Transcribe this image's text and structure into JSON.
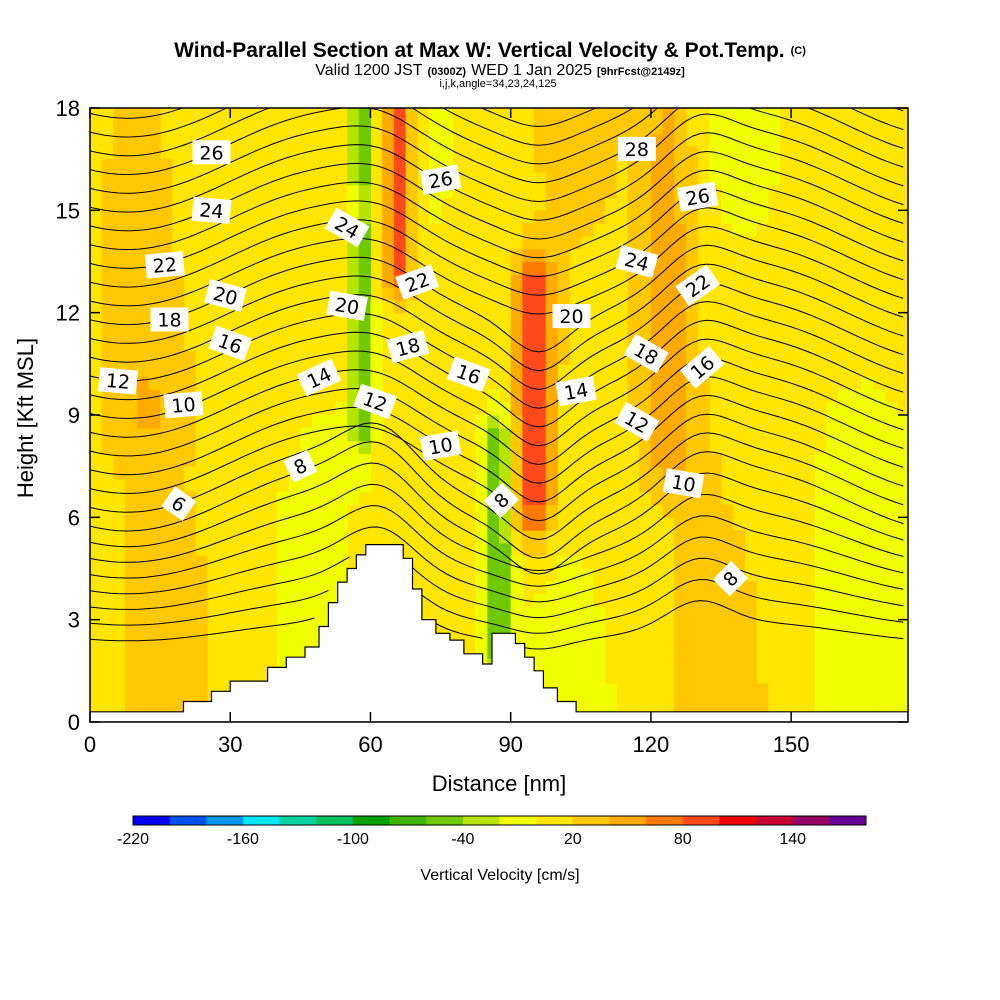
{
  "chart_data": {
    "type": "heatmap",
    "title": "Wind-Parallel Section at Max W: Vertical Velocity & Pot.Temp.",
    "title_mark": "(C)",
    "subtitle": {
      "prefix": "Valid 1200 JST",
      "utc": "(0300Z)",
      "date": "WED 1 Jan 2025",
      "forecast": "[9hrFcst@2149z]"
    },
    "subtitle2": "i,j,k,angle=34,23,24,125",
    "xlabel": "Distance [nm]",
    "ylabel": "Height [Kft MSL]",
    "xlim": [
      0,
      175
    ],
    "ylim": [
      0,
      18
    ],
    "xticks": [
      0,
      30,
      60,
      90,
      120,
      150
    ],
    "yticks": [
      0,
      3,
      6,
      9,
      12,
      15,
      18
    ],
    "colorbar": {
      "title": "Vertical Velocity [cm/s]",
      "levels": [
        -220,
        -200,
        -180,
        -160,
        -140,
        -120,
        -100,
        -80,
        -60,
        -40,
        -20,
        0,
        20,
        40,
        60,
        80,
        100,
        120,
        140,
        160
      ],
      "tick_labels": [
        "-220",
        "-160",
        "-100",
        "-40",
        "20",
        "80",
        "140"
      ],
      "tick_values": [
        -220,
        -160,
        -100,
        -40,
        20,
        80,
        140
      ],
      "colors": [
        "#0000f0",
        "#0050f0",
        "#0096f0",
        "#00e6ff",
        "#00d2a0",
        "#00c060",
        "#00a000",
        "#40b400",
        "#70c800",
        "#b4e400",
        "#f0ff00",
        "#ffe600",
        "#ffc800",
        "#ffaa00",
        "#ff7a00",
        "#ff4a1e",
        "#f00000",
        "#c80032",
        "#960064",
        "#640096"
      ]
    },
    "vertical_velocity_features": [
      {
        "name": "updraft",
        "x_center": 66,
        "x_width": 3,
        "y_from": 13.5,
        "y_to": 18,
        "w": 90
      },
      {
        "name": "updraft",
        "x_center": 95,
        "x_width": 4,
        "y_from": 6.5,
        "y_to": 12.5,
        "w": 90
      },
      {
        "name": "updraft",
        "x_center": 124,
        "x_width": 6,
        "y_from": 8,
        "y_to": 18,
        "w": 40
      },
      {
        "name": "updraft",
        "x_center": 12,
        "x_width": 9,
        "y_from": 9,
        "y_to": 18,
        "w": 25
      },
      {
        "name": "downdraft",
        "x_center": 87,
        "x_width": 3,
        "y_from": 2.5,
        "y_to": 8,
        "w": -70
      },
      {
        "name": "downdraft",
        "x_center": 58,
        "x_width": 2,
        "y_from": 9,
        "y_to": 14,
        "w": -60
      },
      {
        "name": "downdraft",
        "x_center": 58,
        "x_width": 2,
        "y_from": 16.5,
        "y_to": 18,
        "w": -70
      }
    ],
    "terrain": [
      {
        "x": 0,
        "h": 0.3
      },
      {
        "x": 19,
        "h": 0.3
      },
      {
        "x": 20,
        "h": 0.6
      },
      {
        "x": 26,
        "h": 0.9
      },
      {
        "x": 30,
        "h": 1.2
      },
      {
        "x": 38,
        "h": 1.6
      },
      {
        "x": 42,
        "h": 1.9
      },
      {
        "x": 46,
        "h": 2.2
      },
      {
        "x": 49,
        "h": 2.8
      },
      {
        "x": 51,
        "h": 3.5
      },
      {
        "x": 53,
        "h": 4.1
      },
      {
        "x": 55,
        "h": 4.5
      },
      {
        "x": 57,
        "h": 4.9
      },
      {
        "x": 59,
        "h": 5.2
      },
      {
        "x": 65,
        "h": 5.2
      },
      {
        "x": 67,
        "h": 4.8
      },
      {
        "x": 69,
        "h": 3.9
      },
      {
        "x": 71,
        "h": 3.0
      },
      {
        "x": 74,
        "h": 2.6
      },
      {
        "x": 77,
        "h": 2.4
      },
      {
        "x": 80,
        "h": 2.0
      },
      {
        "x": 84,
        "h": 1.7
      },
      {
        "x": 86,
        "h": 2.6
      },
      {
        "x": 91,
        "h": 2.3
      },
      {
        "x": 93,
        "h": 1.9
      },
      {
        "x": 95,
        "h": 1.5
      },
      {
        "x": 97,
        "h": 1.0
      },
      {
        "x": 100,
        "h": 0.6
      },
      {
        "x": 104,
        "h": 0.3
      },
      {
        "x": 175,
        "h": 0.3
      }
    ],
    "theta_contour_labels": [
      {
        "text": "6",
        "x": 19,
        "y": 6.4,
        "angle": 35
      },
      {
        "text": "8",
        "x": 45,
        "y": 7.5,
        "angle": -25
      },
      {
        "text": "8",
        "x": 88,
        "y": 6.5,
        "angle": -45
      },
      {
        "text": "8",
        "x": 137,
        "y": 4.2,
        "angle": -45
      },
      {
        "text": "10",
        "x": 20,
        "y": 9.3,
        "angle": -5
      },
      {
        "text": "10",
        "x": 75,
        "y": 8.1,
        "angle": -10
      },
      {
        "text": "10",
        "x": 127,
        "y": 7.0,
        "angle": 10
      },
      {
        "text": "12",
        "x": 6,
        "y": 10.0,
        "angle": 5
      },
      {
        "text": "12",
        "x": 61,
        "y": 9.4,
        "angle": 20
      },
      {
        "text": "12",
        "x": 117,
        "y": 8.8,
        "angle": 30
      },
      {
        "text": "14",
        "x": 49,
        "y": 10.1,
        "angle": -25
      },
      {
        "text": "14",
        "x": 104,
        "y": 9.7,
        "angle": -10
      },
      {
        "text": "16",
        "x": 30,
        "y": 11.1,
        "angle": 20
      },
      {
        "text": "16",
        "x": 81,
        "y": 10.2,
        "angle": 20
      },
      {
        "text": "16",
        "x": 131,
        "y": 10.4,
        "angle": -40
      },
      {
        "text": "18",
        "x": 17,
        "y": 11.8,
        "angle": 0
      },
      {
        "text": "18",
        "x": 68,
        "y": 11.0,
        "angle": -15
      },
      {
        "text": "18",
        "x": 119,
        "y": 10.8,
        "angle": 30
      },
      {
        "text": "20",
        "x": 29,
        "y": 12.5,
        "angle": 15
      },
      {
        "text": "20",
        "x": 55,
        "y": 12.2,
        "angle": 10
      },
      {
        "text": "20",
        "x": 103,
        "y": 11.9,
        "angle": 0
      },
      {
        "text": "22",
        "x": 16,
        "y": 13.4,
        "angle": -5
      },
      {
        "text": "22",
        "x": 70,
        "y": 12.9,
        "angle": -20
      },
      {
        "text": "22",
        "x": 130,
        "y": 12.8,
        "angle": -35
      },
      {
        "text": "24",
        "x": 26,
        "y": 15.0,
        "angle": 5
      },
      {
        "text": "24",
        "x": 55,
        "y": 14.5,
        "angle": 30
      },
      {
        "text": "24",
        "x": 117,
        "y": 13.5,
        "angle": 15
      },
      {
        "text": "26",
        "x": 26,
        "y": 16.7,
        "angle": 0
      },
      {
        "text": "26",
        "x": 75,
        "y": 15.9,
        "angle": -10
      },
      {
        "text": "26",
        "x": 130,
        "y": 15.4,
        "angle": -10
      },
      {
        "text": "28",
        "x": 117,
        "y": 16.8,
        "angle": 0
      }
    ]
  }
}
